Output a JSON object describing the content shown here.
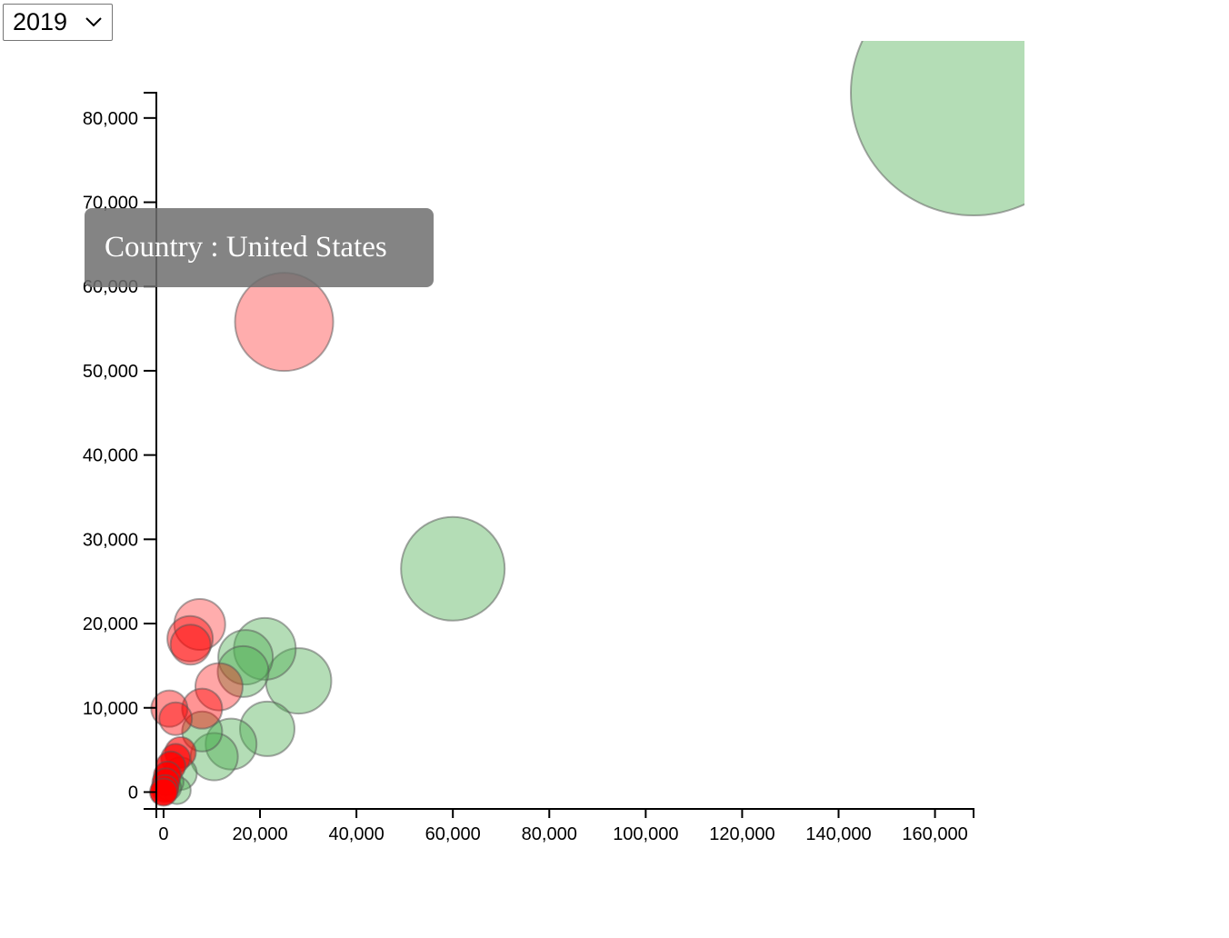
{
  "year_select": {
    "selected": "2019",
    "icon": "chevron-down-icon"
  },
  "tooltip": {
    "text": "Country : United States"
  },
  "colors": {
    "green": "#4caf50",
    "red": "#ff0000",
    "stroke": "#555555",
    "axis": "#000000"
  },
  "chart_data": {
    "type": "scatter",
    "title": "",
    "xlabel": "",
    "ylabel": "",
    "xlim": [
      -1500,
      168000
    ],
    "ylim": [
      -2000,
      83000
    ],
    "x_ticks": [
      0,
      20000,
      40000,
      60000,
      80000,
      100000,
      120000,
      140000,
      160000
    ],
    "y_ticks": [
      0,
      10000,
      20000,
      30000,
      40000,
      50000,
      60000,
      70000,
      80000
    ],
    "grid": false,
    "legend": "none",
    "series": [
      {
        "color": "green",
        "points": [
          {
            "x": 168000,
            "y": 83000,
            "r": 135,
            "opacity": 0.42
          },
          {
            "x": 60000,
            "y": 26500,
            "r": 57,
            "opacity": 0.42
          },
          {
            "x": 28000,
            "y": 13200,
            "r": 36,
            "opacity": 0.42
          },
          {
            "x": 21000,
            "y": 17000,
            "r": 34,
            "opacity": 0.42
          },
          {
            "x": 17000,
            "y": 16000,
            "r": 30,
            "opacity": 0.42
          },
          {
            "x": 16500,
            "y": 14300,
            "r": 28,
            "opacity": 0.42
          },
          {
            "x": 21500,
            "y": 7500,
            "r": 30,
            "opacity": 0.42
          },
          {
            "x": 14000,
            "y": 5700,
            "r": 28,
            "opacity": 0.42
          },
          {
            "x": 10500,
            "y": 4200,
            "r": 26,
            "opacity": 0.42
          },
          {
            "x": 8000,
            "y": 7200,
            "r": 22,
            "opacity": 0.45
          },
          {
            "x": 3500,
            "y": 2200,
            "r": 18,
            "opacity": 0.42
          },
          {
            "x": 2800,
            "y": 200,
            "r": 15,
            "opacity": 0.42
          },
          {
            "x": 1500,
            "y": 1200,
            "r": 14,
            "opacity": 0.45
          },
          {
            "x": 1000,
            "y": 500,
            "r": 14,
            "opacity": 0.45
          }
        ]
      },
      {
        "color": "red",
        "points": [
          {
            "x": 25000,
            "y": 55800,
            "r": 54,
            "opacity": 0.32
          },
          {
            "x": 7500,
            "y": 19900,
            "r": 28,
            "opacity": 0.32
          },
          {
            "x": 5500,
            "y": 18200,
            "r": 25,
            "opacity": 0.42
          },
          {
            "x": 5600,
            "y": 17500,
            "r": 22,
            "opacity": 0.42
          },
          {
            "x": 11500,
            "y": 12500,
            "r": 26,
            "opacity": 0.35
          },
          {
            "x": 8000,
            "y": 9900,
            "r": 22,
            "opacity": 0.42
          },
          {
            "x": 1200,
            "y": 9900,
            "r": 20,
            "opacity": 0.42
          },
          {
            "x": 2500,
            "y": 8700,
            "r": 18,
            "opacity": 0.42
          },
          {
            "x": 3500,
            "y": 4700,
            "r": 17,
            "opacity": 0.6
          },
          {
            "x": 2500,
            "y": 4000,
            "r": 16,
            "opacity": 0.65
          },
          {
            "x": 1500,
            "y": 3100,
            "r": 16,
            "opacity": 0.75
          },
          {
            "x": 800,
            "y": 2000,
            "r": 15,
            "opacity": 0.85
          },
          {
            "x": 500,
            "y": 1200,
            "r": 15,
            "opacity": 0.85
          },
          {
            "x": 300,
            "y": 400,
            "r": 15,
            "opacity": 0.9
          },
          {
            "x": 0,
            "y": 0,
            "r": 15,
            "opacity": 0.9
          }
        ]
      }
    ]
  }
}
